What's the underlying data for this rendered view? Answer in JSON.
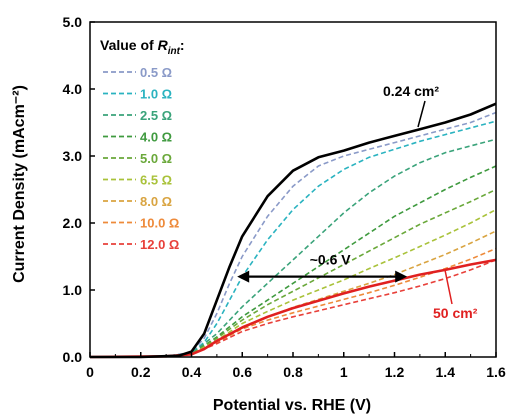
{
  "chart_data": {
    "type": "line",
    "xlabel": "Potential vs. RHE (V)",
    "ylabel": "Current Density (mAcm⁻²)",
    "xlim": [
      0,
      1.6
    ],
    "ylim": [
      0,
      5.0
    ],
    "xticks": [
      "0",
      "0.2",
      "0.4",
      "0.6",
      "0.8",
      "1",
      "1.2",
      "1.4",
      "1.6"
    ],
    "yticks": [
      "0.0",
      "1.0",
      "2.0",
      "3.0",
      "4.0",
      "5.0"
    ],
    "legend": {
      "title_prefix": "Value of ",
      "title_symbol": "R",
      "title_subscript": "int",
      "title_suffix": ":",
      "placement": "top-left"
    },
    "series": [
      {
        "name": "0.24 cm²",
        "style": "solid",
        "color": "#000000",
        "x": [
          0,
          0.2,
          0.35,
          0.4,
          0.45,
          0.5,
          0.55,
          0.6,
          0.7,
          0.8,
          0.9,
          1.0,
          1.1,
          1.2,
          1.3,
          1.4,
          1.5,
          1.6
        ],
        "y": [
          0,
          0,
          0.02,
          0.08,
          0.35,
          0.85,
          1.35,
          1.8,
          2.4,
          2.78,
          2.98,
          3.08,
          3.2,
          3.3,
          3.4,
          3.5,
          3.62,
          3.78
        ]
      },
      {
        "name": "0.5 Ω",
        "style": "dashed",
        "color": "#8a9ac8",
        "x": [
          0,
          0.3,
          0.4,
          0.45,
          0.5,
          0.55,
          0.6,
          0.7,
          0.8,
          0.9,
          1.0,
          1.1,
          1.2,
          1.3,
          1.4,
          1.5,
          1.6
        ],
        "y": [
          0,
          0.01,
          0.07,
          0.28,
          0.65,
          1.1,
          1.5,
          2.1,
          2.55,
          2.85,
          3.0,
          3.1,
          3.2,
          3.3,
          3.4,
          3.5,
          3.65
        ]
      },
      {
        "name": "1.0 Ω",
        "style": "dashed",
        "color": "#2ab3c0",
        "x": [
          0,
          0.3,
          0.4,
          0.45,
          0.5,
          0.55,
          0.6,
          0.7,
          0.8,
          0.9,
          1.0,
          1.1,
          1.2,
          1.3,
          1.4,
          1.5,
          1.6
        ],
        "y": [
          0,
          0.01,
          0.06,
          0.22,
          0.5,
          0.85,
          1.2,
          1.75,
          2.2,
          2.55,
          2.8,
          2.98,
          3.1,
          3.22,
          3.32,
          3.42,
          3.52
        ]
      },
      {
        "name": "2.5 Ω",
        "style": "dashed",
        "color": "#3aa37a",
        "x": [
          0,
          0.3,
          0.4,
          0.5,
          0.6,
          0.7,
          0.8,
          0.9,
          1.0,
          1.1,
          1.2,
          1.3,
          1.4,
          1.5,
          1.6
        ],
        "y": [
          0,
          0.01,
          0.05,
          0.35,
          0.75,
          1.1,
          1.45,
          1.8,
          2.15,
          2.45,
          2.7,
          2.9,
          3.05,
          3.15,
          3.25
        ]
      },
      {
        "name": "4.0 Ω",
        "style": "dashed",
        "color": "#3f9a3f",
        "x": [
          0,
          0.3,
          0.4,
          0.5,
          0.6,
          0.7,
          0.8,
          0.9,
          1.0,
          1.1,
          1.2,
          1.3,
          1.4,
          1.5,
          1.6
        ],
        "y": [
          0,
          0.01,
          0.04,
          0.3,
          0.6,
          0.85,
          1.1,
          1.35,
          1.6,
          1.85,
          2.1,
          2.3,
          2.5,
          2.68,
          2.85
        ]
      },
      {
        "name": "5.0 Ω",
        "style": "dashed",
        "color": "#6aa83a",
        "x": [
          0,
          0.3,
          0.4,
          0.5,
          0.6,
          0.7,
          0.8,
          0.9,
          1.0,
          1.1,
          1.2,
          1.3,
          1.4,
          1.5,
          1.6
        ],
        "y": [
          0,
          0.01,
          0.04,
          0.28,
          0.55,
          0.78,
          0.98,
          1.18,
          1.38,
          1.58,
          1.78,
          1.98,
          2.15,
          2.32,
          2.5
        ]
      },
      {
        "name": "6.5 Ω",
        "style": "dashed",
        "color": "#a9c23a",
        "x": [
          0,
          0.3,
          0.4,
          0.5,
          0.6,
          0.7,
          0.8,
          0.9,
          1.0,
          1.1,
          1.2,
          1.3,
          1.4,
          1.5,
          1.6
        ],
        "y": [
          0,
          0.01,
          0.04,
          0.25,
          0.5,
          0.68,
          0.85,
          1.0,
          1.15,
          1.32,
          1.48,
          1.65,
          1.82,
          2.0,
          2.2
        ]
      },
      {
        "name": "8.0 Ω",
        "style": "dashed",
        "color": "#d9a441",
        "x": [
          0,
          0.3,
          0.4,
          0.5,
          0.6,
          0.7,
          0.8,
          0.9,
          1.0,
          1.1,
          1.2,
          1.3,
          1.4,
          1.5,
          1.6
        ],
        "y": [
          0,
          0.01,
          0.04,
          0.23,
          0.45,
          0.6,
          0.74,
          0.86,
          0.98,
          1.1,
          1.23,
          1.38,
          1.53,
          1.7,
          1.88
        ]
      },
      {
        "name": "10.0 Ω",
        "style": "dashed",
        "color": "#ee8a3a",
        "x": [
          0,
          0.3,
          0.4,
          0.5,
          0.6,
          0.7,
          0.8,
          0.9,
          1.0,
          1.1,
          1.2,
          1.3,
          1.4,
          1.5,
          1.6
        ],
        "y": [
          0,
          0.01,
          0.04,
          0.22,
          0.42,
          0.55,
          0.66,
          0.76,
          0.86,
          0.96,
          1.07,
          1.19,
          1.32,
          1.46,
          1.62
        ]
      },
      {
        "name": "12.0 Ω",
        "style": "dashed",
        "color": "#e8403a",
        "x": [
          0,
          0.3,
          0.4,
          0.5,
          0.6,
          0.7,
          0.8,
          0.9,
          1.0,
          1.1,
          1.2,
          1.3,
          1.4,
          1.5,
          1.6
        ],
        "y": [
          0,
          0.01,
          0.04,
          0.2,
          0.38,
          0.5,
          0.6,
          0.69,
          0.78,
          0.87,
          0.96,
          1.06,
          1.17,
          1.3,
          1.45
        ]
      },
      {
        "name": "50 cm²",
        "style": "solid",
        "color": "#e02020",
        "x": [
          0,
          0.3,
          0.4,
          0.45,
          0.5,
          0.6,
          0.7,
          0.8,
          0.9,
          1.0,
          1.1,
          1.2,
          1.3,
          1.4,
          1.5,
          1.6
        ],
        "y": [
          0,
          0.01,
          0.04,
          0.12,
          0.24,
          0.44,
          0.6,
          0.73,
          0.84,
          0.95,
          1.05,
          1.14,
          1.23,
          1.3,
          1.38,
          1.45
        ]
      }
    ],
    "annotations": [
      {
        "text": "~0.6 V",
        "type": "double-arrow",
        "x_from": 0.58,
        "x_to": 1.25,
        "y": 1.2
      },
      {
        "text": "0.24 cm²",
        "target_series": "0.24 cm²",
        "color": "#000000"
      },
      {
        "text": "50 cm²",
        "target_series": "50 cm²",
        "color": "#e02020"
      }
    ]
  }
}
